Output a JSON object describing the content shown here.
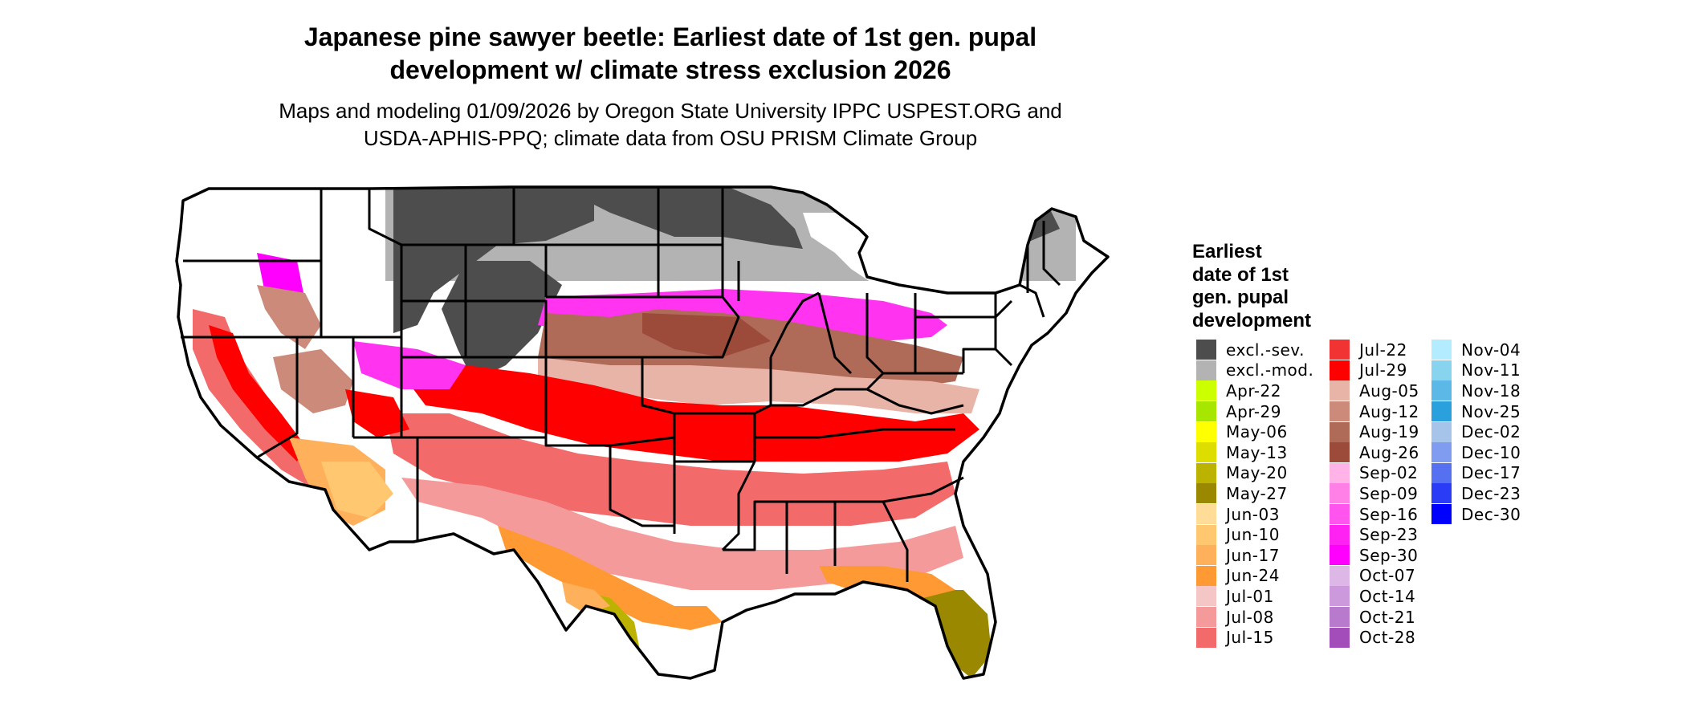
{
  "title": {
    "line1": "Japanese pine sawyer beetle: Earliest date of 1st gen. pupal",
    "line2": "development w/ climate stress exclusion 2026"
  },
  "subtitle": {
    "line1": "Maps and modeling 01/09/2026 by Oregon State University IPPC USPEST.ORG and",
    "line2": "USDA-APHIS-PPQ; climate data from OSU PRISM Climate Group"
  },
  "legend": {
    "title_lines": [
      "Earliest",
      "date of 1st",
      "gen. pupal",
      "development"
    ],
    "columns": [
      [
        {
          "label": "excl.-sev.",
          "color": "#4d4d4d"
        },
        {
          "label": "excl.-mod.",
          "color": "#b3b3b3"
        },
        {
          "label": "Apr-22",
          "color": "#ccff00"
        },
        {
          "label": "Apr-29",
          "color": "#a6e600"
        },
        {
          "label": "May-06",
          "color": "#ffff00"
        },
        {
          "label": "May-13",
          "color": "#dddd00"
        },
        {
          "label": "May-20",
          "color": "#bbb300"
        },
        {
          "label": "May-27",
          "color": "#9a8800"
        },
        {
          "label": "Jun-03",
          "color": "#ffdd99"
        },
        {
          "label": "Jun-10",
          "color": "#ffc870"
        },
        {
          "label": "Jun-17",
          "color": "#ffb05a"
        },
        {
          "label": "Jun-24",
          "color": "#ff9933"
        },
        {
          "label": "Jul-01",
          "color": "#f4c6c6"
        },
        {
          "label": "Jul-08",
          "color": "#f59a9a"
        },
        {
          "label": "Jul-15",
          "color": "#f26a6a"
        }
      ],
      [
        {
          "label": "Jul-22",
          "color": "#f23333"
        },
        {
          "label": "Jul-29",
          "color": "#ff0000"
        },
        {
          "label": "Aug-05",
          "color": "#e8b4a8"
        },
        {
          "label": "Aug-12",
          "color": "#cc8a7a"
        },
        {
          "label": "Aug-19",
          "color": "#b06a58"
        },
        {
          "label": "Aug-26",
          "color": "#9c4a3a"
        },
        {
          "label": "Sep-02",
          "color": "#ffb3e6"
        },
        {
          "label": "Sep-09",
          "color": "#ff80e6"
        },
        {
          "label": "Sep-16",
          "color": "#ff55ee"
        },
        {
          "label": "Sep-23",
          "color": "#ff22f2"
        },
        {
          "label": "Sep-30",
          "color": "#ff00ff"
        },
        {
          "label": "Oct-07",
          "color": "#ddb8e6"
        },
        {
          "label": "Oct-14",
          "color": "#cc99dd"
        },
        {
          "label": "Oct-21",
          "color": "#b77acc"
        },
        {
          "label": "Oct-28",
          "color": "#a34dbb"
        }
      ],
      [
        {
          "label": "Nov-04",
          "color": "#b3ecff"
        },
        {
          "label": "Nov-11",
          "color": "#88d4ee"
        },
        {
          "label": "Nov-18",
          "color": "#5cb8e6"
        },
        {
          "label": "Nov-25",
          "color": "#2aa0dd"
        },
        {
          "label": "Dec-02",
          "color": "#a6c4ea"
        },
        {
          "label": "Dec-10",
          "color": "#7f9cf0"
        },
        {
          "label": "Dec-17",
          "color": "#5570f0"
        },
        {
          "label": "Dec-23",
          "color": "#2a3cf5"
        },
        {
          "label": "Dec-30",
          "color": "#0000ff"
        }
      ]
    ]
  }
}
